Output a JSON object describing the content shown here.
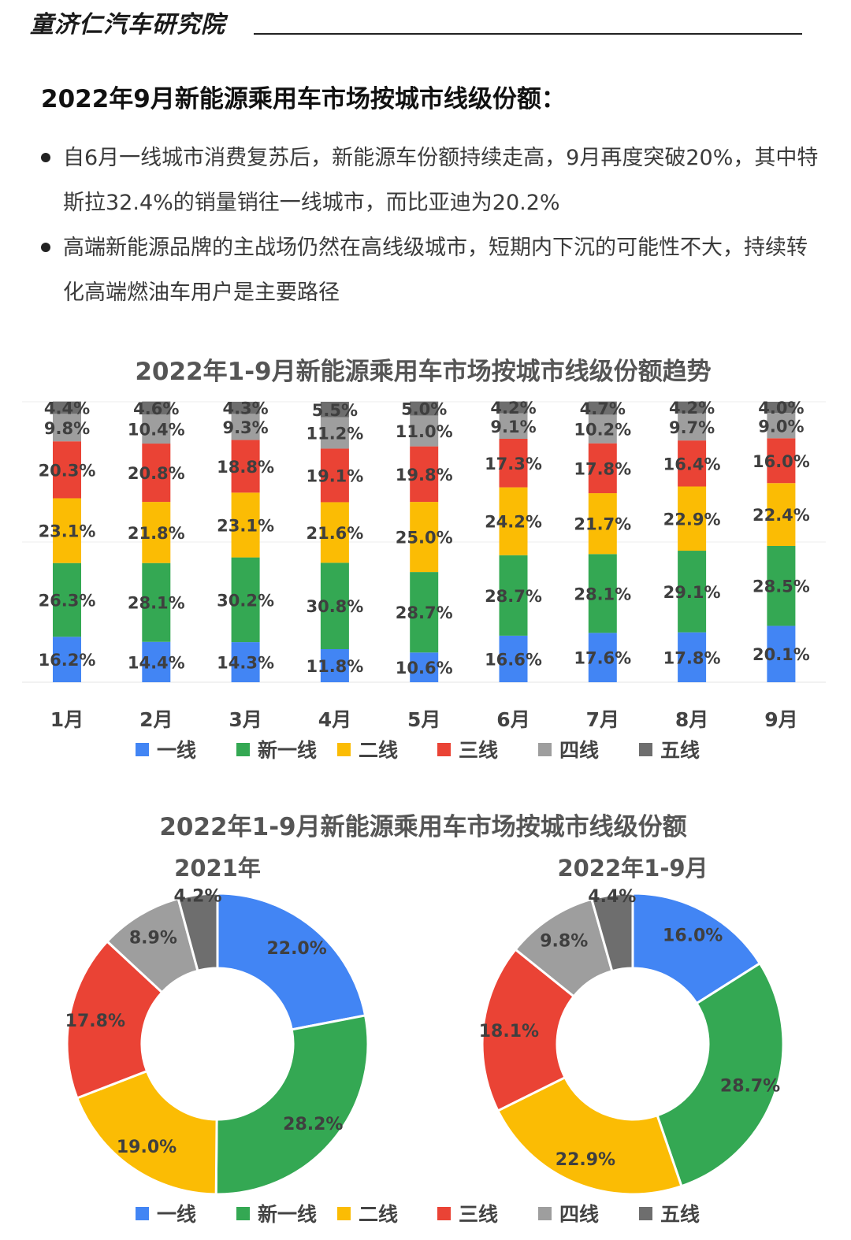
{
  "header": {
    "brand": "童济仁汽车研究院"
  },
  "page_title": "2022年9月新能源乘用车市场按城市线级份额：",
  "bullets": [
    "自6月一线城市消费复苏后，新能源车份额持续走高，9月再度突破20%，其中特斯拉32.4%的销量销往一线城市，而比亚迪为20.2%",
    "高端新能源品牌的主战场仍然在高线级城市，短期内下沉的可能性不大，持续转化高端燃油车用户是主要路径"
  ],
  "colors": {
    "一线": "#4285F4",
    "新一线": "#34A853",
    "二线": "#FBBC04",
    "三线": "#EA4335",
    "四线": "#9E9E9E",
    "五线": "#6E6E6E"
  },
  "chart_data": [
    {
      "type": "bar",
      "stacked": true,
      "normalized_percent": true,
      "title": "2022年1-9月新能源乘用车市场按城市线级份额趋势",
      "categories": [
        "1月",
        "2月",
        "3月",
        "4月",
        "5月",
        "6月",
        "7月",
        "8月",
        "9月"
      ],
      "series": [
        {
          "name": "一线",
          "values": [
            16.2,
            14.4,
            14.3,
            11.8,
            10.6,
            16.6,
            17.6,
            17.8,
            20.1
          ]
        },
        {
          "name": "新一线",
          "values": [
            26.3,
            28.1,
            30.2,
            30.8,
            28.7,
            28.7,
            28.1,
            29.1,
            28.5
          ]
        },
        {
          "name": "二线",
          "values": [
            23.1,
            21.8,
            23.1,
            21.6,
            25.0,
            24.2,
            21.7,
            22.9,
            22.4
          ]
        },
        {
          "name": "三线",
          "values": [
            20.3,
            20.8,
            18.8,
            19.1,
            19.8,
            17.3,
            17.8,
            16.4,
            16.0
          ]
        },
        {
          "name": "四线",
          "values": [
            9.8,
            10.4,
            9.3,
            11.2,
            11.0,
            9.1,
            10.2,
            9.7,
            9.0
          ]
        },
        {
          "name": "五线",
          "values": [
            4.4,
            4.6,
            4.3,
            5.5,
            5.0,
            4.2,
            4.7,
            4.2,
            4.0
          ]
        }
      ],
      "labels": [
        [
          "16.2%",
          "14.4%",
          "14.3%",
          "11.8%",
          "10.6%",
          "16.6%",
          "17.6%",
          "17.8%",
          "20.1%"
        ],
        [
          "26.3%",
          "28.1%",
          "30.2%",
          "30.8%",
          "28.7%",
          "28.7%",
          "28.1%",
          "29.1%",
          "28.5%"
        ],
        [
          "23.1%",
          "21.8%",
          "23.1%",
          "21.6%",
          "25.0%",
          "24.2%",
          "21.7%",
          "22.9%",
          "22.4%"
        ],
        [
          "20.3%",
          "20.8%",
          "18.8%",
          "19.1%",
          "19.8%",
          "17.3%",
          "17.8%",
          "16.4%",
          "16.0%"
        ],
        [
          "9.8%",
          "10.4%",
          "9.3%",
          "11.2%",
          "11.0%",
          "9.1%",
          "10.2%",
          "9.7%",
          "9.0%"
        ],
        [
          "4.4%",
          "4.6%",
          "4.3%",
          "5.5%",
          "5.0%",
          "4.2%",
          "4.7%",
          "4.2%",
          "4.0%"
        ]
      ],
      "legend": [
        "一线",
        "新一线",
        "二线",
        "三线",
        "四线",
        "五线"
      ],
      "legend_position": "bottom"
    },
    {
      "type": "pie",
      "donut": true,
      "title": "2022年1-9月新能源乘用车市场按城市线级份额",
      "charts": [
        {
          "subtitle": "2021年",
          "categories": [
            "一线",
            "新一线",
            "二线",
            "三线",
            "四线",
            "五线"
          ],
          "values": [
            22.0,
            28.2,
            19.0,
            17.8,
            8.9,
            4.2
          ],
          "labels": [
            "22.0%",
            "28.2%",
            "19.0%",
            "17.8%",
            "8.9%",
            "4.2%"
          ]
        },
        {
          "subtitle": "2022年1-9月",
          "categories": [
            "一线",
            "新一线",
            "二线",
            "三线",
            "四线",
            "五线"
          ],
          "values": [
            16.0,
            28.7,
            22.9,
            18.1,
            9.8,
            4.4
          ],
          "labels": [
            "16.0%",
            "28.7%",
            "22.9%",
            "18.1%",
            "9.8%",
            "4.4%"
          ]
        }
      ],
      "legend": [
        "一线",
        "新一线",
        "二线",
        "三线",
        "四线",
        "五线"
      ],
      "legend_position": "bottom"
    }
  ]
}
